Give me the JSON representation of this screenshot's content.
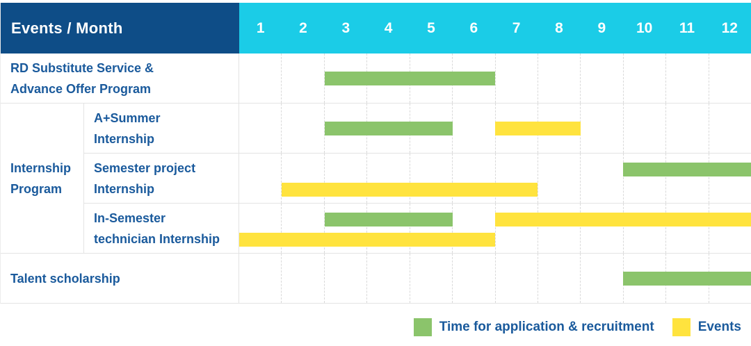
{
  "header": {
    "label": "Events / Month",
    "months": [
      "1",
      "2",
      "3",
      "4",
      "5",
      "6",
      "7",
      "8",
      "9",
      "10",
      "11",
      "12"
    ]
  },
  "colors": {
    "navy": "#0e4d87",
    "cyan": "#1bcce7",
    "green": "#8bc46b",
    "yellow": "#ffe33e",
    "label_blue": "#1a5a9c"
  },
  "legend": [
    {
      "color_key": "green",
      "label": "Time for application & recruitment"
    },
    {
      "color_key": "yellow",
      "label": "Events"
    }
  ],
  "chart_data": {
    "type": "gantt",
    "title": "Events / Month",
    "xlabel": "Month",
    "x_range": [
      1,
      12
    ],
    "x_ticks": [
      "1",
      "2",
      "3",
      "4",
      "5",
      "6",
      "7",
      "8",
      "9",
      "10",
      "11",
      "12"
    ],
    "grid": "dashed-vertical",
    "legend_position": "bottom-right",
    "series_legend": {
      "green": "Time for application & recruitment",
      "yellow": "Events"
    },
    "rows": [
      {
        "category": "RD Substitute Service &\nAdvance Offer Program",
        "group": null,
        "bars": [
          {
            "series": "Time for application & recruitment",
            "color_key": "green",
            "start_month": 3,
            "end_month": 6,
            "lane": "center"
          }
        ]
      },
      {
        "category": "A+Summer\nInternship",
        "group": "Internship\nProgram",
        "bars": [
          {
            "series": "Time for application & recruitment",
            "color_key": "green",
            "start_month": 3,
            "end_month": 5,
            "lane": "center"
          },
          {
            "series": "Events",
            "color_key": "yellow",
            "start_month": 7,
            "end_month": 8,
            "lane": "center"
          }
        ]
      },
      {
        "category": "Semester project\nInternship",
        "group": "Internship\nProgram",
        "bars": [
          {
            "series": "Time for application & recruitment",
            "color_key": "green",
            "start_month": 10,
            "end_month": 12,
            "lane": "top"
          },
          {
            "series": "Events",
            "color_key": "yellow",
            "start_month": 2,
            "end_month": 7,
            "lane": "bottom"
          }
        ]
      },
      {
        "category": "In-Semester\ntechnician Internship",
        "group": "Internship\nProgram",
        "bars": [
          {
            "series": "Time for application & recruitment",
            "color_key": "green",
            "start_month": 3,
            "end_month": 5,
            "lane": "top"
          },
          {
            "series": "Events",
            "color_key": "yellow",
            "start_month": 7,
            "end_month": 12,
            "lane": "top"
          },
          {
            "series": "Events",
            "color_key": "yellow",
            "start_month": 1,
            "end_month": 6,
            "lane": "bottom"
          }
        ]
      },
      {
        "category": "Talent scholarship",
        "group": null,
        "bars": [
          {
            "series": "Time for application & recruitment",
            "color_key": "green",
            "start_month": 10,
            "end_month": 12,
            "lane": "center"
          }
        ]
      }
    ]
  }
}
